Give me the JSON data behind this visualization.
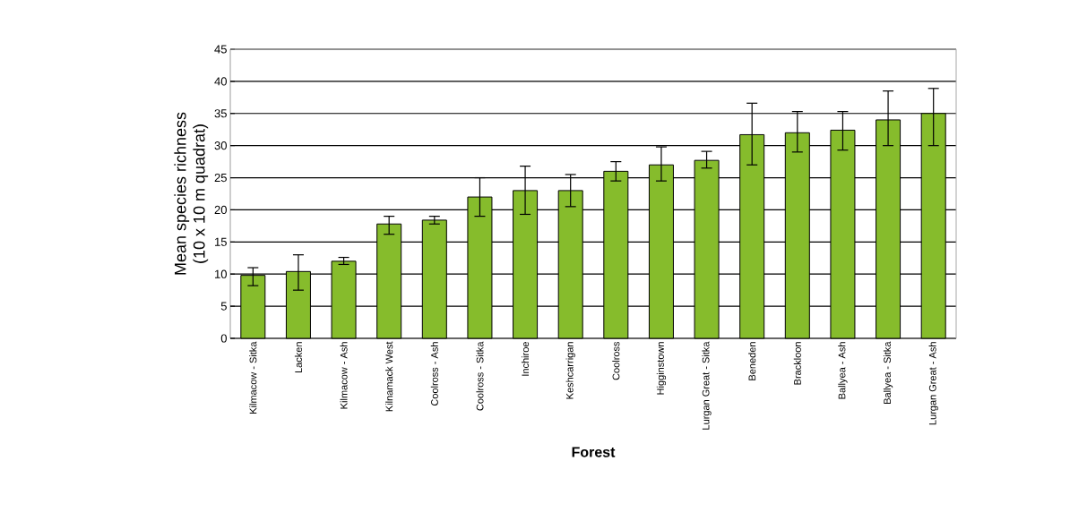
{
  "chart_data": {
    "type": "bar",
    "xlabel": "Forest",
    "ylabel": "Mean species richness\n(10 x 10 m quadrat)",
    "categories": [
      "Kilmacow - Sitka",
      "Lacken",
      "Kilmacow - Ash",
      "Kilnamack West",
      "Coolross - Ash",
      "Coolross - Sitka",
      "Inchiroe",
      "Keshcarrigan",
      "Coolross",
      "Higginstown",
      "Lurgan Great - Sitka",
      "Beneden",
      "Brackloon",
      "Ballyea - Ash",
      "Ballyea - Sitka",
      "Lurgan Great - Ash"
    ],
    "values": [
      9.8,
      10.4,
      12,
      17.8,
      18.4,
      22,
      23,
      23,
      26,
      27,
      27.7,
      31.7,
      32,
      32.4,
      34,
      35
    ],
    "errors": [
      [
        8.2,
        11
      ],
      [
        7.5,
        13
      ],
      [
        11.5,
        12.6
      ],
      [
        16.2,
        19
      ],
      [
        17.8,
        19
      ],
      [
        19,
        25
      ],
      [
        19.3,
        26.8
      ],
      [
        20.5,
        25.5
      ],
      [
        24.5,
        27.5
      ],
      [
        24.5,
        29.8
      ],
      [
        26.5,
        29.1
      ],
      [
        27,
        36.6
      ],
      [
        29,
        35.3
      ],
      [
        29.3,
        35.3
      ],
      [
        30,
        38.5
      ],
      [
        30,
        38.9
      ]
    ],
    "color": "#86bc2c",
    "ylim": [
      0,
      45
    ],
    "yticks": [
      0,
      5,
      10,
      15,
      20,
      25,
      30,
      35,
      40,
      45
    ],
    "grid": "y"
  }
}
